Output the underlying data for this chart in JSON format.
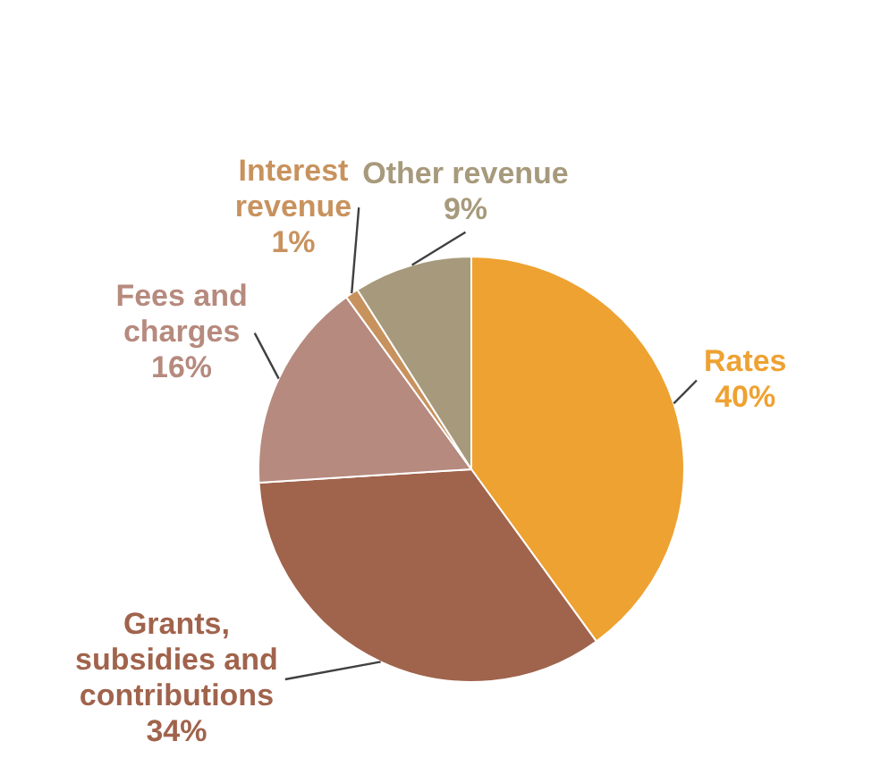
{
  "chart_data": {
    "type": "pie",
    "categories": [
      "Rates",
      "Grants, subsidies and contributions",
      "Fees and charges",
      "Interest revenue",
      "Other revenue"
    ],
    "values": [
      40,
      34,
      16,
      1,
      9
    ],
    "value_labels": [
      "40%",
      "34%",
      "16%",
      "1%",
      "9%"
    ],
    "colors": [
      "#eea232",
      "#a0634c",
      "#b68a7e",
      "#c8925e",
      "#a79a7c"
    ],
    "legend": false
  }
}
